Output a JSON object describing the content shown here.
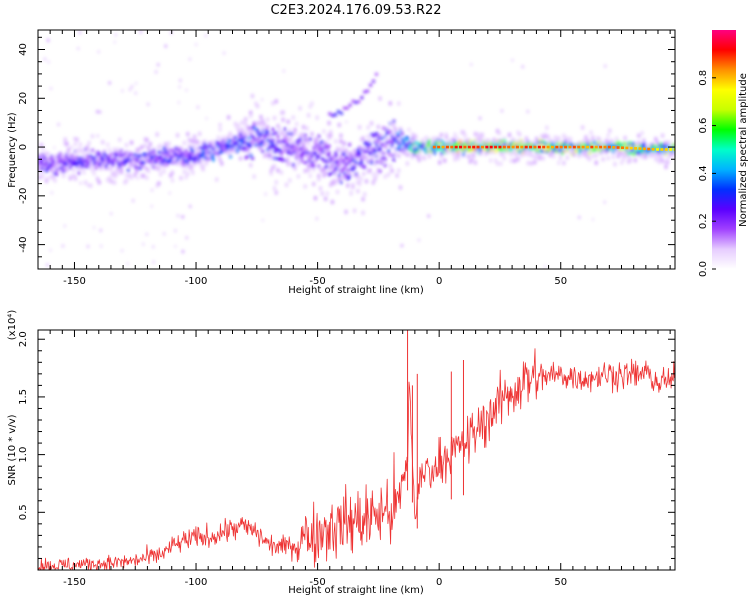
{
  "figure": {
    "title": "C2E3.2024.176.09.53.R22",
    "colorbar": {
      "label": "Normalized spectral amplitude",
      "ticks": [
        "0.0",
        "0.2",
        "0.4",
        "0.6",
        "0.8"
      ],
      "tick_values": [
        0.0,
        0.2,
        0.4,
        0.6,
        0.8
      ],
      "range": [
        0,
        1
      ]
    }
  },
  "chart_data": [
    {
      "type": "heatmap",
      "title": "",
      "xlabel": "Height of straight line (km)",
      "ylabel": "Frequency (Hz)",
      "xlim": [
        -165,
        97
      ],
      "ylim": [
        -50,
        48
      ],
      "xticks": [
        "-150",
        "-100",
        "-50",
        "0",
        "50"
      ],
      "xtick_values": [
        -150,
        -100,
        -50,
        0,
        50
      ],
      "yticks": [
        "-40",
        "-20",
        "0",
        "20",
        "40"
      ],
      "ytick_values": [
        -40,
        -20,
        0,
        20,
        40
      ],
      "colormap": [
        "#ffffff",
        "#e6ccff",
        "#a040ff",
        "#5a00ff",
        "#0030ff",
        "#00b4ff",
        "#00ffc8",
        "#00ff00",
        "#c8ff00",
        "#ffff00",
        "#ff9000",
        "#ff0000",
        "#ff0080"
      ],
      "ridge_center_hz": {
        "x": [
          -165,
          -150,
          -120,
          -100,
          -80,
          -75,
          -60,
          -50,
          -40,
          -30,
          -20,
          -16,
          -10,
          0,
          10,
          30,
          50,
          70,
          90,
          97
        ],
        "y": [
          -7,
          -6,
          -5,
          -3,
          2,
          4,
          0,
          -3,
          -8,
          -3,
          2,
          2,
          0,
          0,
          0,
          0,
          0,
          0,
          -1,
          -1
        ]
      },
      "ridge_peak_amplitude": {
        "x": [
          -165,
          -120,
          -90,
          -75,
          -60,
          -40,
          -20,
          -10,
          0,
          10,
          50,
          90,
          97
        ],
        "y": [
          0.3,
          0.35,
          0.4,
          0.45,
          0.3,
          0.35,
          0.4,
          0.6,
          0.8,
          0.85,
          0.8,
          0.75,
          0.7
        ]
      },
      "secondary_streak": {
        "x": [
          -45,
          -40,
          -35,
          -30,
          -25
        ],
        "y": [
          13,
          15,
          18,
          23,
          30
        ],
        "amplitude": 0.15
      }
    },
    {
      "type": "line",
      "title": "",
      "xlabel": "Height of straight line (km)",
      "ylabel": "SNR (10 * v/v)",
      "scale_note": "(x10⁴)",
      "xlim": [
        -165,
        97
      ],
      "ylim": [
        0,
        2.08
      ],
      "xticks": [
        "-150",
        "-100",
        "-50",
        "0",
        "50"
      ],
      "xtick_values": [
        -150,
        -100,
        -50,
        0,
        50
      ],
      "yticks": [
        "0.5",
        "1.0",
        "1.5",
        "2.0"
      ],
      "ytick_values": [
        0.5,
        1.0,
        1.5,
        2.0
      ],
      "series": [
        {
          "color": "#ee3333",
          "x": [
            -165,
            -155,
            -145,
            -135,
            -125,
            -115,
            -110,
            -105,
            -100,
            -95,
            -90,
            -85,
            -80,
            -75,
            -70,
            -65,
            -60,
            -55,
            -50,
            -45,
            -40,
            -35,
            -30,
            -25,
            -20,
            -16,
            -14,
            -12,
            -10,
            -8,
            -5,
            -2,
            0,
            5,
            10,
            15,
            20,
            25,
            30,
            35,
            40,
            50,
            60,
            70,
            80,
            85,
            90,
            97
          ],
          "values": [
            0.04,
            0.04,
            0.05,
            0.06,
            0.08,
            0.13,
            0.2,
            0.25,
            0.28,
            0.28,
            0.32,
            0.36,
            0.38,
            0.32,
            0.22,
            0.2,
            0.22,
            0.3,
            0.32,
            0.38,
            0.4,
            0.42,
            0.45,
            0.48,
            0.52,
            0.6,
            0.8,
            1.5,
            0.45,
            0.75,
            0.9,
            0.85,
            0.95,
            1.02,
            1.08,
            1.2,
            1.32,
            1.45,
            1.55,
            1.63,
            1.67,
            1.69,
            1.66,
            1.7,
            1.69,
            1.71,
            1.62,
            1.65
          ]
        }
      ],
      "spikes": {
        "x": [
          -13,
          -11,
          -9,
          5,
          10
        ],
        "y": [
          2.08,
          1.6,
          1.7,
          1.72,
          1.82
        ]
      }
    }
  ]
}
